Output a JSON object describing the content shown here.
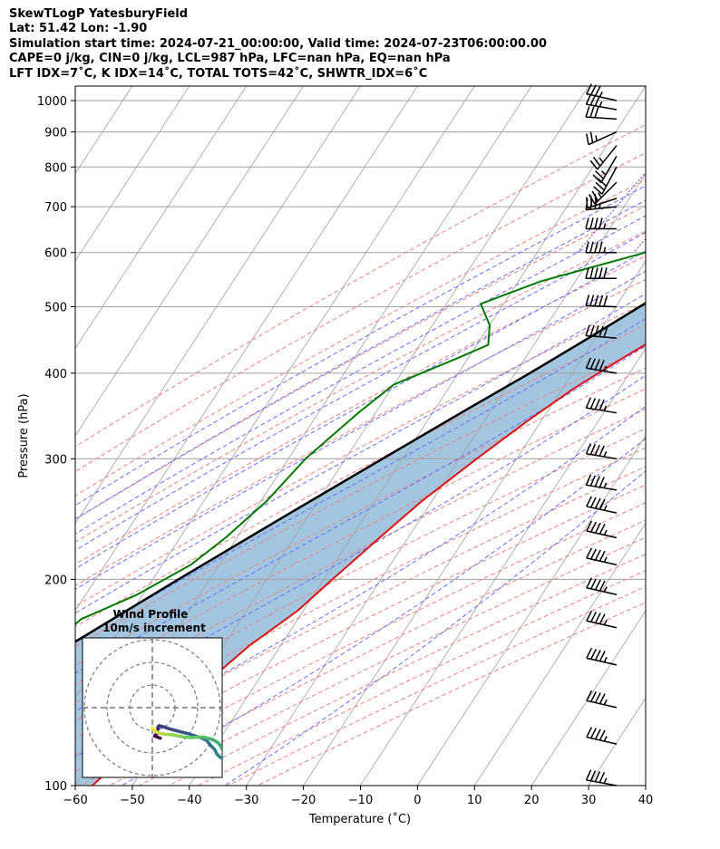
{
  "header": {
    "line1": "SkewTLogP YatesburyField",
    "line2": "Lat: 51.42   Lon: -1.90",
    "line3": "Simulation start time: 2024-07-21_00:00:00, Valid time: 2024-07-23T06:00:00.00",
    "line4": "CAPE=0 j/kg, CIN=0 j/kg, LCL=987 hPa, LFC=nan hPa, EQ=nan hPa",
    "line5": "LFT IDX=7˚C, K IDX=14˚C, TOTAL TOTS=42˚C, SHWTR_IDX=6˚C"
  },
  "chart_data": {
    "type": "line",
    "subtype": "skew-t log-p",
    "xlabel": "Temperature (˚C)",
    "ylabel": "Pressure (hPa)",
    "xlim": [
      -60,
      40
    ],
    "ylim": [
      1050,
      100
    ],
    "yscale": "log",
    "x_ticks": [
      "−60",
      "−50",
      "−40",
      "−30",
      "−20",
      "−10",
      "0",
      "10",
      "20",
      "30",
      "40"
    ],
    "y_ticks": [
      "100",
      "200",
      "300",
      "400",
      "500",
      "600",
      "700",
      "800",
      "900",
      "1000"
    ],
    "grid": true,
    "colors": {
      "temperature": "#e11010",
      "dewpoint": "#007a00",
      "parcel": "#000000",
      "cape_fill": "#7aaed3",
      "dry_adiabat": "#f08080",
      "moist_adiabat": "#6b6bff",
      "mixing_ratio": "#7b3fd6",
      "isotherm": "#a0a0a0"
    },
    "series": [
      {
        "name": "temperature",
        "pressure": [
          995,
          960,
          900,
          860,
          830,
          790,
          760,
          700,
          650,
          600,
          550,
          500,
          460,
          420,
          380,
          340,
          300,
          260,
          230,
          200,
          180,
          160,
          140,
          120,
          100
        ],
        "values": [
          14.0,
          13.8,
          13.4,
          12.0,
          12.5,
          15.5,
          14.0,
          11.8,
          8.8,
          6.0,
          2.2,
          -3.0,
          -8.2,
          -13.0,
          -18.0,
          -22.5,
          -27.0,
          -31.8,
          -35.0,
          -38.5,
          -41.0,
          -45.5,
          -49.0,
          -53.0,
          -57.0
        ]
      },
      {
        "name": "dewpoint",
        "pressure": [
          995,
          960,
          900,
          860,
          830,
          790,
          720,
          650,
          600,
          545,
          505,
          470,
          440,
          420,
          385,
          350,
          300,
          260,
          230,
          210,
          190,
          175,
          150,
          125,
          100
        ],
        "values": [
          13.8,
          13.4,
          12.5,
          10.5,
          7.0,
          3.5,
          -1.5,
          -11.0,
          -21.0,
          -36.0,
          -44.0,
          -40.0,
          -38.0,
          -42.0,
          -50.0,
          -53.0,
          -57.0,
          -59.0,
          -62.0,
          -65.0,
          -71.0,
          -78.0,
          -82.0,
          -85.0,
          -90.0
        ]
      },
      {
        "name": "parcel",
        "pressure": [
          1000,
          987,
          950,
          900,
          850,
          800,
          750,
          700,
          650,
          600,
          550,
          500,
          450,
          400,
          350,
          300,
          250,
          200,
          175,
          150,
          125,
          100
        ],
        "values": [
          14.0,
          13.6,
          11.8,
          9.8,
          7.6,
          5.3,
          2.8,
          0.0,
          -3.2,
          -6.8,
          -11.0,
          -15.8,
          -21.2,
          -27.5,
          -35.0,
          -43.5,
          -53.5,
          -65.5,
          -72.5,
          -80.5,
          -90.0,
          -101.0
        ]
      }
    ],
    "inset": {
      "type": "hodograph",
      "title": "Wind Profile",
      "subtitle": "10m/s increment",
      "rings_ms": [
        10,
        20,
        30
      ],
      "u": [
        0,
        0.5,
        1.0,
        1.6,
        2.2,
        4.0,
        6.5,
        9.0,
        11.5,
        14.0,
        17.0,
        20.0,
        22.5,
        24.5,
        26.5,
        29.0,
        30.5,
        31.5,
        32.0,
        31.0,
        30.0,
        28.5,
        27.5,
        26.0,
        24.0,
        22.0,
        19.0,
        16.0,
        13.0,
        10.0,
        7.0,
        5.0,
        3.0,
        2.5,
        2.5,
        1.5,
        2.0,
        1.0,
        3.5
      ],
      "v": [
        9.0,
        9.5,
        10.0,
        10.5,
        11.0,
        11.5,
        11.8,
        12.0,
        12.5,
        13.0,
        13.2,
        13.0,
        13.0,
        13.5,
        14.0,
        15.5,
        17.5,
        20.0,
        22.5,
        22.5,
        22.0,
        20.5,
        18.5,
        17.0,
        14.5,
        13.5,
        12.5,
        11.5,
        10.8,
        10.0,
        9.2,
        8.5,
        8.0,
        8.5,
        9.5,
        10.5,
        11.5,
        12.5,
        13.5
      ]
    },
    "barbs": {
      "pressure": [
        1000,
        970,
        940,
        900,
        860,
        830,
        800,
        760,
        720,
        700,
        650,
        600,
        550,
        500,
        450,
        400,
        350,
        300,
        270,
        250,
        230,
        210,
        190,
        170,
        150,
        130,
        115,
        100
      ],
      "u": [
        18,
        17,
        15,
        11,
        8,
        7,
        7,
        10,
        15,
        19,
        22,
        24,
        25,
        25,
        25,
        24,
        24,
        24,
        24,
        23,
        22,
        22,
        22,
        22,
        22,
        22,
        22,
        22
      ],
      "v": [
        -4,
        -3,
        -1,
        5,
        10,
        12,
        13,
        10,
        5,
        2,
        0,
        0,
        0,
        -1,
        -2,
        -4,
        -4,
        -4,
        -4,
        -5,
        -5,
        -5,
        -5,
        -5,
        -5,
        -5,
        -5,
        -4
      ]
    }
  }
}
